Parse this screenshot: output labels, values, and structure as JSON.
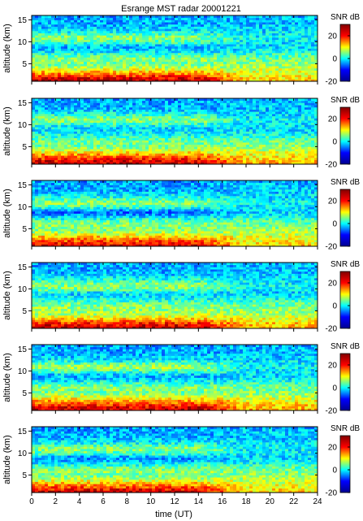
{
  "title": "Esrange MST radar 20001221",
  "chart_data": {
    "type": "heatmap",
    "title": "Esrange MST radar 20001221",
    "xlabel": "time (UT)",
    "ylabel": "altitude (km)",
    "colorbar_label": "SNR dB",
    "xlim": [
      0,
      24
    ],
    "ylim": [
      1,
      16
    ],
    "clim": [
      -20,
      30
    ],
    "x_ticks": [
      "0",
      "2",
      "4",
      "6",
      "8",
      "10",
      "12",
      "14",
      "16",
      "18",
      "20",
      "22",
      "24"
    ],
    "y_ticks": [
      "5",
      "10",
      "15"
    ],
    "colorbar_ticks": [
      "-20",
      "0",
      "20"
    ],
    "colormap": "jet",
    "colormap_stops": [
      "#00008f",
      "#0000ff",
      "#00ffff",
      "#ffff00",
      "#ff0000",
      "#800000"
    ],
    "panels": [
      {
        "profile": {
          "altitudes": [
            1,
            2,
            3,
            4,
            5,
            6,
            7,
            8,
            9,
            10,
            11,
            12,
            13,
            14,
            15,
            16
          ],
          "snr_db_early": [
            28,
            24,
            16,
            8,
            4,
            6,
            2,
            -4,
            -6,
            2,
            6,
            0,
            -4,
            -6,
            -6,
            -7
          ],
          "snr_db_late": [
            14,
            12,
            10,
            8,
            6,
            4,
            2,
            -2,
            -4,
            -3,
            -2,
            -3,
            -4,
            -5,
            -5,
            -6
          ]
        }
      },
      {
        "profile": {
          "altitudes": [
            1,
            2,
            3,
            4,
            5,
            6,
            7,
            8,
            9,
            10,
            11,
            12,
            13,
            14,
            15,
            16
          ],
          "snr_db_early": [
            27,
            24,
            18,
            10,
            4,
            4,
            2,
            -2,
            -4,
            0,
            6,
            2,
            -4,
            -6,
            -6,
            -7
          ],
          "snr_db_late": [
            16,
            14,
            12,
            8,
            6,
            4,
            2,
            -2,
            -4,
            -3,
            -2,
            -3,
            -4,
            -5,
            -5,
            -6
          ]
        }
      },
      {
        "profile": {
          "altitudes": [
            1,
            2,
            3,
            4,
            5,
            6,
            7,
            8,
            9,
            10,
            11,
            12,
            13,
            14,
            15,
            16
          ],
          "snr_db_early": [
            26,
            22,
            16,
            8,
            4,
            6,
            2,
            -6,
            -10,
            2,
            6,
            0,
            -4,
            -6,
            -6,
            -7
          ],
          "snr_db_late": [
            14,
            12,
            10,
            8,
            6,
            4,
            2,
            -2,
            -4,
            -3,
            -2,
            -3,
            -4,
            -5,
            -5,
            -6
          ]
        }
      },
      {
        "profile": {
          "altitudes": [
            1,
            2,
            3,
            4,
            5,
            6,
            7,
            8,
            9,
            10,
            11,
            12,
            13,
            14,
            15,
            16
          ],
          "snr_db_early": [
            28,
            24,
            16,
            8,
            6,
            6,
            2,
            -2,
            -4,
            4,
            6,
            0,
            -4,
            -6,
            -6,
            -7
          ],
          "snr_db_late": [
            16,
            14,
            12,
            8,
            6,
            4,
            2,
            -2,
            -4,
            -3,
            -2,
            -3,
            -4,
            -5,
            -5,
            -6
          ]
        }
      },
      {
        "profile": {
          "altitudes": [
            1,
            2,
            3,
            4,
            5,
            6,
            7,
            8,
            9,
            10,
            11,
            12,
            13,
            14,
            15,
            16
          ],
          "snr_db_early": [
            27,
            24,
            18,
            10,
            4,
            6,
            2,
            -4,
            -6,
            2,
            8,
            0,
            -4,
            -6,
            -6,
            -7
          ],
          "snr_db_late": [
            16,
            14,
            12,
            8,
            6,
            4,
            2,
            -2,
            -4,
            -3,
            -2,
            -3,
            -4,
            -5,
            -5,
            -6
          ]
        }
      },
      {
        "profile": {
          "altitudes": [
            1,
            2,
            3,
            4,
            5,
            6,
            7,
            8,
            9,
            10,
            11,
            12,
            13,
            14,
            15,
            16
          ],
          "snr_db_early": [
            28,
            22,
            16,
            8,
            4,
            6,
            2,
            -4,
            -8,
            2,
            6,
            0,
            -4,
            -6,
            -6,
            -7
          ],
          "snr_db_late": [
            14,
            12,
            10,
            8,
            6,
            4,
            2,
            -2,
            -4,
            -3,
            -2,
            -3,
            -4,
            -5,
            -5,
            -6
          ]
        }
      }
    ]
  }
}
